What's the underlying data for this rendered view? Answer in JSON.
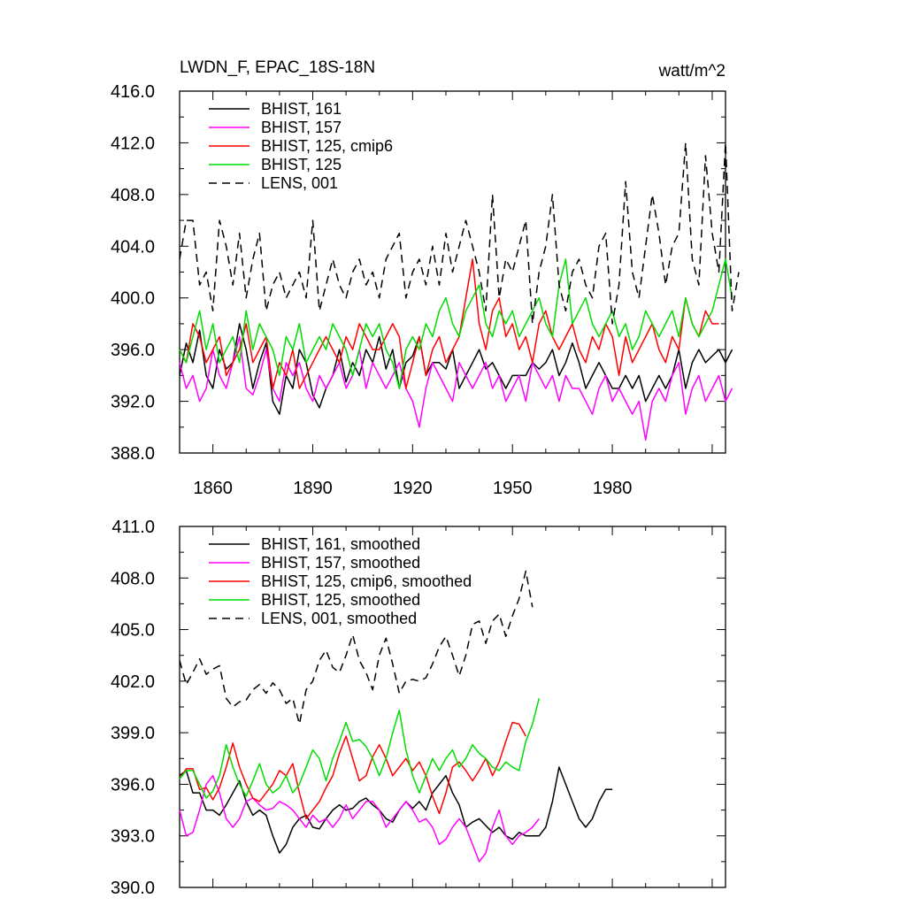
{
  "chart_data": [
    {
      "type": "line",
      "title": "LWDN_F, EPAC_18S-18N",
      "units": "watt/m^2",
      "xlim": [
        1850,
        2014
      ],
      "ylim": [
        388,
        416
      ],
      "yticks": [
        "416.0",
        "412.0",
        "408.0",
        "404.0",
        "400.0",
        "396.0",
        "392.0",
        "388.0"
      ],
      "xticks": [
        "1860",
        "1890",
        "1920",
        "1950",
        "1980"
      ],
      "legend_position": "top-left",
      "series": [
        {
          "name": "BHIST, 161",
          "color": "#000000",
          "dash": "solid",
          "x0": 1850,
          "dx": 2,
          "values": [
            394,
            396.5,
            395,
            397.5,
            394,
            393,
            396,
            394.5,
            395,
            398,
            396,
            393,
            395,
            396.5,
            392,
            391,
            394,
            393,
            396,
            395,
            392.5,
            391.5,
            393,
            394,
            396,
            393.5,
            395,
            394,
            396,
            395,
            397,
            394.5,
            396,
            393,
            395,
            395.5,
            397,
            394,
            395,
            395,
            394.5,
            396,
            393,
            394,
            395,
            396,
            394.5,
            395,
            394,
            393,
            394,
            394,
            394,
            395,
            394.5,
            395,
            396,
            394,
            395,
            396.5,
            395,
            393,
            394,
            395,
            394,
            393,
            393,
            394,
            393,
            394,
            392,
            393,
            394,
            393,
            394,
            396,
            393,
            395,
            396,
            395,
            395.5,
            396,
            395,
            396
          ]
        },
        {
          "name": "BHIST, 157",
          "color": "#ff00ff",
          "dash": "solid",
          "x0": 1850,
          "dx": 2,
          "values": [
            395,
            393,
            394,
            392,
            393,
            396,
            394,
            393,
            395,
            397,
            393,
            392.5,
            394,
            396,
            393,
            392,
            395,
            394,
            395,
            393,
            392,
            394,
            393,
            394,
            395,
            393,
            394,
            396,
            393,
            395,
            394,
            393,
            394,
            395,
            393,
            392,
            390,
            393,
            395,
            394,
            393,
            392,
            395,
            394,
            393,
            394,
            395,
            393,
            394,
            392,
            393,
            394,
            392,
            395,
            394,
            393,
            394,
            392,
            394,
            393,
            393,
            392,
            391,
            393,
            394,
            392,
            393,
            392,
            391,
            392,
            389,
            392,
            393,
            392,
            394,
            395,
            391,
            393,
            394,
            392,
            393,
            394,
            392,
            393
          ]
        },
        {
          "name": "BHIST, 125, cmip6",
          "color": "#ff0000",
          "dash": "solid",
          "x0": 1850,
          "dx": 2,
          "values": [
            396,
            395,
            398,
            397,
            395,
            396,
            397,
            394,
            395,
            396,
            398,
            395,
            396,
            397,
            393,
            395,
            394,
            396,
            393,
            394,
            395,
            396,
            397,
            396,
            395,
            397,
            396,
            398,
            397,
            396,
            396,
            397,
            398,
            397,
            393,
            395,
            397,
            394,
            396,
            397,
            395,
            396,
            397,
            400,
            403,
            398,
            396,
            399,
            400,
            397,
            398,
            396,
            397,
            395,
            398,
            399,
            397,
            396,
            397,
            398,
            396,
            395,
            397,
            396,
            398,
            397,
            394,
            397,
            395,
            396,
            397,
            398,
            396,
            395,
            397,
            396,
            400,
            398,
            397,
            399,
            398,
            398
          ]
        },
        {
          "name": "BHIST, 125",
          "color": "#00dd00",
          "dash": "solid",
          "x0": 1850,
          "dx": 2,
          "values": [
            396,
            395,
            397,
            399,
            396,
            398,
            395,
            396,
            397,
            395,
            399,
            396,
            398,
            397,
            396,
            394,
            397,
            396,
            398,
            395,
            396,
            397,
            396,
            398,
            397,
            396,
            394,
            396,
            398,
            397,
            398,
            396,
            395,
            393,
            396,
            397,
            396,
            398,
            397,
            399,
            400,
            398,
            397,
            399,
            400,
            401,
            398,
            397,
            399,
            398,
            399,
            397,
            398,
            399,
            400,
            398,
            397,
            401,
            403,
            398,
            399,
            400,
            398,
            397,
            398,
            399,
            397,
            398,
            396,
            397,
            399,
            398,
            397,
            398,
            399,
            397,
            400,
            398,
            397,
            398,
            399,
            401,
            403,
            400
          ]
        },
        {
          "name": "LENS, 001",
          "color": "#000000",
          "dash": "dashed",
          "x0": 1850,
          "dx": 2,
          "values": [
            403,
            406,
            406,
            401,
            402,
            399,
            406,
            404,
            401,
            405,
            400,
            403,
            405,
            399,
            401,
            402,
            400,
            401,
            402,
            400,
            406,
            399,
            401,
            403,
            401,
            400,
            402,
            403,
            401,
            402,
            400,
            403,
            404,
            405,
            400,
            402,
            403,
            401,
            404,
            401,
            405,
            402,
            404,
            406,
            404,
            402,
            399,
            408,
            400,
            403,
            402,
            404,
            406,
            398,
            402,
            404,
            408,
            401,
            399,
            402,
            403,
            401,
            400,
            404,
            405,
            398,
            401,
            409,
            402,
            400,
            404,
            408,
            405,
            401,
            404,
            405,
            412,
            403,
            401,
            411,
            405,
            402,
            412,
            399,
            402
          ]
        }
      ]
    },
    {
      "type": "line",
      "xlim": [
        1850,
        2014
      ],
      "ylim": [
        390,
        411
      ],
      "yticks": [
        "411.0",
        "408.0",
        "405.0",
        "402.0",
        "399.0",
        "396.0",
        "393.0",
        "390.0"
      ],
      "legend_position": "top-left",
      "series": [
        {
          "name": "BHIST, 161, smoothed",
          "color": "#000000",
          "dash": "solid",
          "x0": 1850,
          "dx": 2,
          "values": [
            396.5,
            396.8,
            395.5,
            395.5,
            394.5,
            394.5,
            394.2,
            394.8,
            395.5,
            396.2,
            395.0,
            394.2,
            394.5,
            394.2,
            393.0,
            392.0,
            392.5,
            393.5,
            394.0,
            394.2,
            393.5,
            393.4,
            394.0,
            394.5,
            394.8,
            394.5,
            394.6,
            395.0,
            395.2,
            394.8,
            394.5,
            394.0,
            393.8,
            394.5,
            395.0,
            394.6,
            395.0,
            394.5,
            395.5,
            396.0,
            396.5,
            395.5,
            394.8,
            393.5,
            393.8,
            394.0,
            393.6,
            393.2,
            393.5,
            393.0,
            392.8,
            393.2,
            393.0,
            393.0,
            393.0,
            393.5,
            395.0,
            397.0,
            396.0,
            395.0,
            394.0,
            393.5,
            394.0,
            395.0,
            395.7,
            395.7
          ]
        },
        {
          "name": "BHIST, 157, smoothed",
          "color": "#ff00ff",
          "dash": "solid",
          "x0": 1850,
          "dx": 2,
          "values": [
            394.5,
            393.0,
            393.2,
            394.5,
            396.0,
            396.5,
            395.5,
            394.0,
            393.5,
            394.0,
            395.0,
            395.2,
            394.8,
            394.5,
            394.6,
            395.0,
            394.8,
            394.5,
            394.0,
            393.5,
            394.2,
            393.8,
            394.0,
            393.5,
            394.0,
            394.8,
            394.0,
            394.5,
            395.0,
            395.0,
            394.5,
            393.5,
            394.0,
            394.5,
            395.0,
            394.5,
            393.8,
            394.0,
            393.5,
            392.5,
            392.8,
            393.5,
            394.0,
            393.5,
            392.5,
            391.5,
            392.0,
            393.5,
            394.5,
            393.0,
            392.5,
            393.0,
            393.2,
            393.5,
            394.0
          ]
        },
        {
          "name": "BHIST, 125, cmip6, smoothed",
          "color": "#ff0000",
          "dash": "solid",
          "x0": 1850,
          "dx": 2,
          "values": [
            396.3,
            396.9,
            396.9,
            395.7,
            395.8,
            395.1,
            395.8,
            397.0,
            398.4,
            397.0,
            396.0,
            395.2,
            395.0,
            395.5,
            396.0,
            396.8,
            396.5,
            397.2,
            395.5,
            394.0,
            394.5,
            395.0,
            395.8,
            396.5,
            397.8,
            398.8,
            397.5,
            396.2,
            396.5,
            397.6,
            398.3,
            397.5,
            396.5,
            397.0,
            397.5,
            396.8,
            397.3,
            396.5,
            395.3,
            394.3,
            395.5,
            397.0,
            397.3,
            396.8,
            396.2,
            396.8,
            397.5,
            396.5,
            397.3,
            398.5,
            399.6,
            399.5,
            398.8
          ]
        },
        {
          "name": "BHIST, 125, smoothed",
          "color": "#00dd00",
          "dash": "solid",
          "x0": 1850,
          "dx": 2,
          "values": [
            396.3,
            396.8,
            396.8,
            396.0,
            395.2,
            395.6,
            396.5,
            398.3,
            397.0,
            396.0,
            395.3,
            396.2,
            397.2,
            396.0,
            395.5,
            395.8,
            396.5,
            395.5,
            396.0,
            397.0,
            398.0,
            397.5,
            396.2,
            397.5,
            398.5,
            399.6,
            398.5,
            398.6,
            398.2,
            397.5,
            396.5,
            397.5,
            399.0,
            400.3,
            398.0,
            396.5,
            395.5,
            396.5,
            397.5,
            396.8,
            397.5,
            398.0,
            397.0,
            397.5,
            398.3,
            397.8,
            397.5,
            397.0,
            396.8,
            397.3,
            397.0,
            396.8,
            398.5,
            399.5,
            401.0
          ]
        },
        {
          "name": "LENS, 001, smoothed",
          "color": "#000000",
          "dash": "dashed",
          "x0": 1850,
          "dx": 2,
          "values": [
            403.2,
            401.8,
            402.5,
            403.3,
            402.4,
            402.7,
            402.9,
            401.0,
            400.5,
            400.8,
            400.9,
            401.5,
            401.8,
            401.3,
            401.9,
            401.5,
            400.7,
            401.0,
            399.5,
            401.5,
            402.0,
            403.2,
            403.8,
            402.8,
            402.5,
            403.5,
            404.7,
            403.2,
            402.5,
            401.5,
            403.5,
            404.5,
            403.0,
            401.3,
            402.0,
            402.1,
            402.0,
            402.2,
            403.0,
            404.0,
            404.6,
            403.5,
            402.3,
            403.5,
            405.3,
            405.5,
            404.2,
            405.5,
            405.9,
            404.6,
            405.8,
            406.8,
            408.4,
            406.3
          ]
        }
      ]
    }
  ]
}
